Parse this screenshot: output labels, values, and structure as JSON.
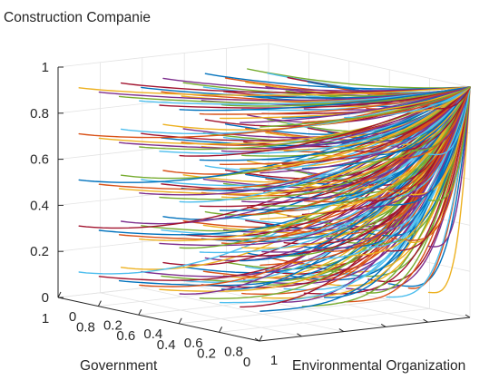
{
  "chart_data": {
    "type": "line",
    "projection": "3d",
    "grid": true,
    "box": true,
    "zlabel": "Construction Companie",
    "xlabel": "Environmental Organization",
    "ylabel": "Government",
    "xlim": [
      0,
      1
    ],
    "ylim": [
      0,
      1
    ],
    "zlim": [
      0,
      1
    ],
    "z_ticks": [
      "0",
      "0.2",
      "0.4",
      "0.6",
      "0.8",
      "1"
    ],
    "x_ticks": [
      "0",
      "0.2",
      "0.4",
      "0.6",
      "0.8",
      "1"
    ],
    "y_ticks": [
      "0",
      "0.2",
      "0.4",
      "0.6",
      "0.8",
      "1"
    ],
    "colors": [
      "#0072BD",
      "#D95319",
      "#EDB120",
      "#7E2F8E",
      "#77AC30",
      "#4DBEEE",
      "#A2142F"
    ],
    "series": [
      {
        "x0": 0.0,
        "y0": 1.0,
        "z0": 0.9,
        "x": [
          0.0,
          0.25,
          0.5,
          0.75,
          1.0
        ],
        "y": [
          1.0,
          0.75,
          0.5,
          0.25,
          0.0
        ],
        "z": [
          0.9,
          0.925,
          0.95,
          0.975,
          1.0
        ]
      },
      {
        "x0": 0.0,
        "y0": 1.0,
        "z0": 0.7,
        "x": [
          0.0,
          0.25,
          0.5,
          0.75,
          1.0
        ],
        "y": [
          1.0,
          0.75,
          0.5,
          0.25,
          0.0
        ],
        "z": [
          0.7,
          0.775,
          0.85,
          0.925,
          1.0
        ]
      },
      {
        "x0": 0.0,
        "y0": 1.0,
        "z0": 0.5,
        "x": [
          0.0,
          0.25,
          0.5,
          0.75,
          1.0
        ],
        "y": [
          1.0,
          0.75,
          0.5,
          0.25,
          0.0
        ],
        "z": [
          0.5,
          0.625,
          0.75,
          0.875,
          1.0
        ]
      },
      {
        "x0": 0.0,
        "y0": 1.0,
        "z0": 0.3,
        "x": [
          0.0,
          0.25,
          0.5,
          0.75,
          1.0
        ],
        "y": [
          1.0,
          0.75,
          0.5,
          0.25,
          0.0
        ],
        "z": [
          0.3,
          0.475,
          0.65,
          0.825,
          1.0
        ]
      },
      {
        "x0": 0.0,
        "y0": 1.0,
        "z0": 0.1,
        "x": [
          0.0,
          0.25,
          0.5,
          0.75,
          1.0
        ],
        "y": [
          1.0,
          0.75,
          0.5,
          0.25,
          0.0
        ],
        "z": [
          0.1,
          0.325,
          0.55,
          0.775,
          1.0
        ]
      }
    ],
    "grid_of_starts": {
      "x0": [
        0,
        0.1,
        0.2,
        0.3,
        0.4,
        0.5,
        0.6,
        0.7,
        0.8,
        0.9
      ],
      "y0": [
        0.1,
        0.3,
        0.5,
        0.7,
        0.9
      ],
      "z0": [
        0.1,
        0.3,
        0.5,
        0.7,
        0.9
      ],
      "endpoint": [
        1,
        0,
        1
      ]
    }
  }
}
